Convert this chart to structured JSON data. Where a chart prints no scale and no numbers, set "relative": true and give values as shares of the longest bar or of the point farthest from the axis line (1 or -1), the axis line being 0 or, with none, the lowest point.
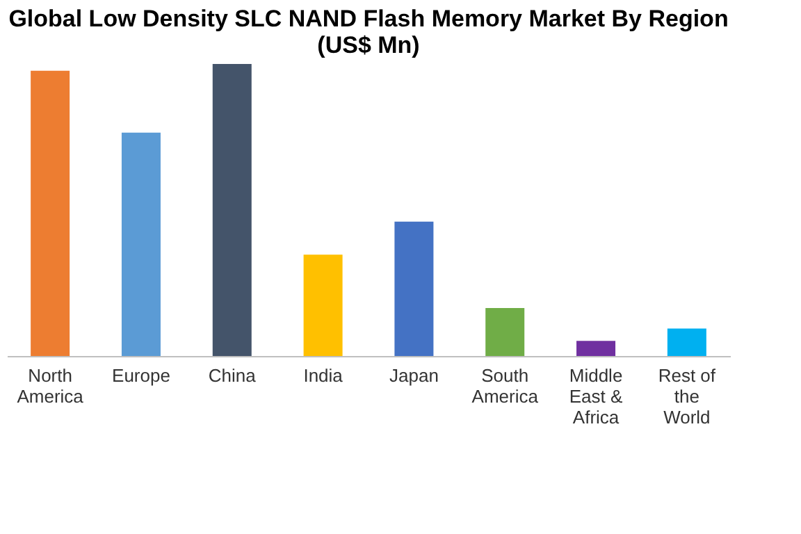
{
  "chart_data": {
    "type": "bar",
    "title": "Global Low Density SLC NAND Flash Memory Market By Region (US$ Mn)",
    "categories": [
      "North America",
      "Europe",
      "China",
      "India",
      "Japan",
      "South America",
      "Middle East & Africa",
      "Rest of the World"
    ],
    "values": [
      0.977,
      0.765,
      1,
      0.347,
      0.46,
      0.164,
      0.052,
      0.094
    ],
    "colors": [
      "#ed7d31",
      "#5b9bd5",
      "#44546a",
      "#ffc000",
      "#4472c4",
      "#70ad47",
      "#7030a0",
      "#00b0f0"
    ],
    "relative": true
  }
}
